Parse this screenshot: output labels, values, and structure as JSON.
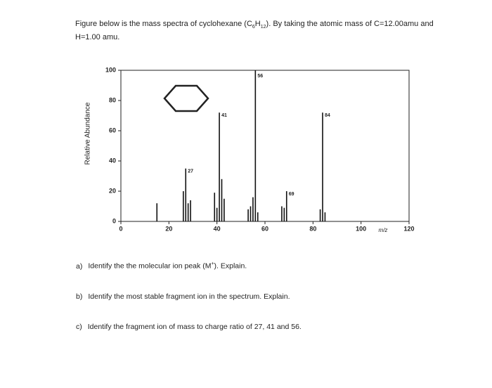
{
  "header": {
    "parts": [
      "Figure below is the mass spectra of cyclohexane (C",
      "6",
      "H",
      "12",
      "). By taking the atomic mass of C=12.00amu and H=1.00 amu."
    ]
  },
  "chart_data": {
    "type": "bar",
    "x_label": "m/z",
    "y_label": "Relative Abundance",
    "x": [
      15,
      26,
      27,
      28,
      29,
      39,
      40,
      41,
      42,
      43,
      53,
      54,
      55,
      56,
      57,
      67,
      68,
      69,
      83,
      84,
      85
    ],
    "values": [
      12,
      20,
      35,
      12,
      14,
      19,
      9,
      72,
      28,
      15,
      8,
      10,
      16,
      100,
      6,
      10,
      9,
      20,
      8,
      72,
      6
    ],
    "annotated_peaks": [
      27,
      41,
      56,
      69,
      84
    ],
    "color": "#111111",
    "xlim": [
      0,
      120
    ],
    "xticks": [
      0,
      20,
      40,
      60,
      80,
      100,
      120
    ],
    "ylim": [
      0,
      100
    ],
    "yticks": [
      0,
      20,
      40,
      60,
      80,
      100
    ]
  },
  "questions": [
    {
      "label": "a)",
      "parts": [
        "Identify the the molecular ion peak (M",
        "+",
        "). Explain."
      ]
    },
    {
      "label": "b)",
      "parts": [
        "Identify the most stable fragment ion in the spectrum. Explain."
      ]
    },
    {
      "label": "c)",
      "parts": [
        "Identify the fragment ion of mass to charge ratio of 27, 41 and 56."
      ]
    }
  ]
}
